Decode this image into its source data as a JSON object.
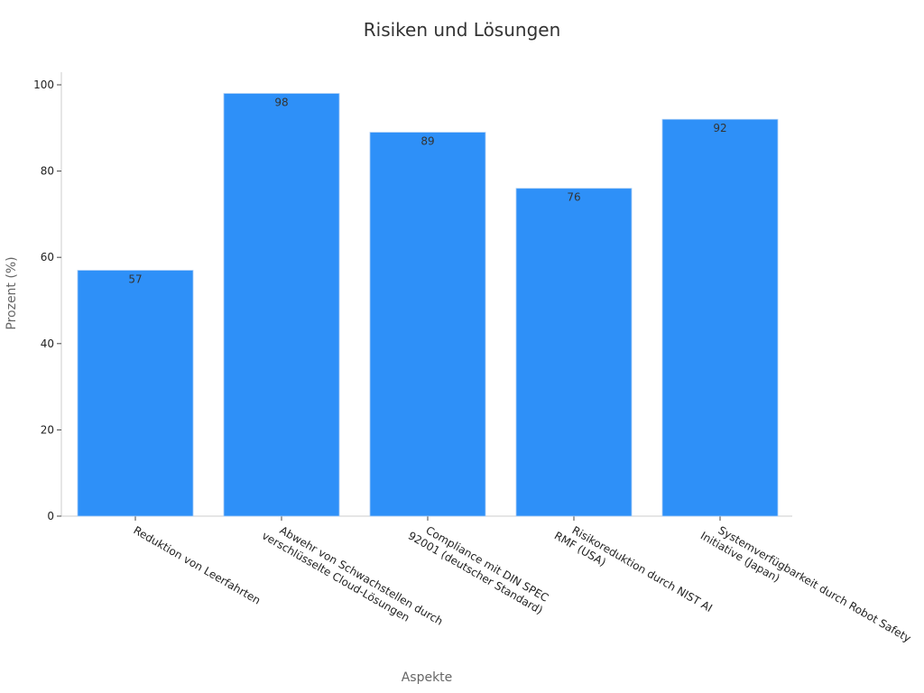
{
  "chart_data": {
    "type": "bar",
    "title": "Risiken und Lösungen",
    "xlabel": "Aspekte",
    "ylabel": "Prozent (%)",
    "ylim": [
      0,
      100
    ],
    "yticks": [
      0,
      20,
      40,
      60,
      80,
      100
    ],
    "categories": [
      [
        "Reduktion von Leerfahrten"
      ],
      [
        "Abwehr von Schwachstellen durch",
        "verschlüsselte Cloud-Lösungen"
      ],
      [
        "Compliance mit DIN SPEC",
        "92001 (deutscher Standard)"
      ],
      [
        "Risikoreduktion durch NIST AI",
        "RMF (USA)"
      ],
      [
        "Systemverfügbarkeit durch Robot Safety",
        "Initiative (Japan)"
      ]
    ],
    "values": [
      57,
      98,
      89,
      76,
      92
    ],
    "bar_color": "#2e90f8",
    "grid": false,
    "legend": "none"
  }
}
